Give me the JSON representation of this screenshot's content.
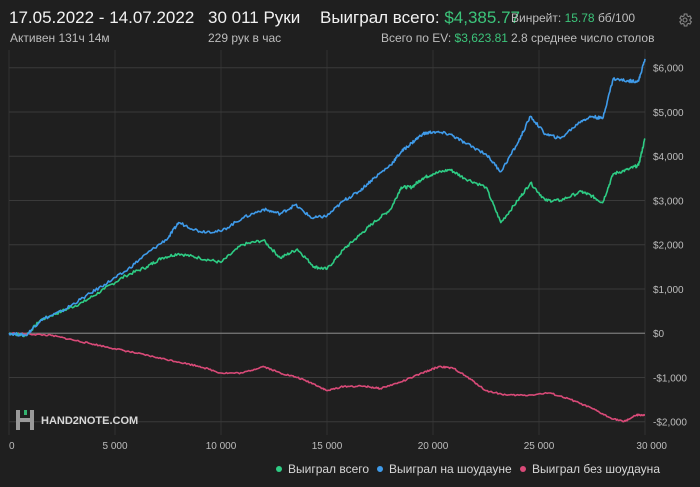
{
  "header": {
    "date_range": "17.05.2022 - 14.07.2022",
    "active": "Активен 131ч 14м",
    "hands": "30 011 Руки",
    "hands_per_hour": "229 рук в час",
    "won_label": "Выиграл всего:",
    "won_value": "$4,385.77",
    "ev_label": "Всего по EV:",
    "ev_value": "$3,623.81",
    "winrate_label": "Винрейт:",
    "winrate_value": "15.78",
    "winrate_unit": "бб/100",
    "tables": "2.8 среднее число столов"
  },
  "icons": {
    "settings": "gear-icon"
  },
  "watermark": {
    "text": "HAND2NOTE.COM"
  },
  "colors": {
    "won": "#2ecc84",
    "showdown": "#3f9bea",
    "non_showdown": "#d94a78",
    "positive": "#3cc47a"
  },
  "chart_data": {
    "type": "line",
    "x_range": [
      0,
      30000
    ],
    "ylim": [
      -2300,
      6400
    ],
    "x_ticks": [
      {
        "value": 0,
        "label": "0"
      },
      {
        "value": 5000,
        "label": "5 000"
      },
      {
        "value": 10000,
        "label": "10 000"
      },
      {
        "value": 15000,
        "label": "15 000"
      },
      {
        "value": 20000,
        "label": "20 000"
      },
      {
        "value": 25000,
        "label": "25 000"
      },
      {
        "value": 30000,
        "label": "30 000"
      }
    ],
    "y_ticks": [
      {
        "value": 6000,
        "label": "$6,000"
      },
      {
        "value": 5000,
        "label": "$5,000"
      },
      {
        "value": 4000,
        "label": "$4,000"
      },
      {
        "value": 3000,
        "label": "$3,000"
      },
      {
        "value": 2000,
        "label": "$2,000"
      },
      {
        "value": 1000,
        "label": "$1,000"
      },
      {
        "value": 0,
        "label": "$0"
      },
      {
        "value": -1000,
        "label": "-$1,000"
      },
      {
        "value": -2000,
        "label": "-$2,000"
      }
    ],
    "legend_position": "bottom-right",
    "series": [
      {
        "name": "Выиграл всего",
        "color": "#2ecc84",
        "points": [
          [
            0,
            0
          ],
          [
            800,
            -50
          ],
          [
            1500,
            300
          ],
          [
            2500,
            500
          ],
          [
            3500,
            700
          ],
          [
            4500,
            1000
          ],
          [
            5500,
            1300
          ],
          [
            6500,
            1500
          ],
          [
            7200,
            1700
          ],
          [
            8000,
            1800
          ],
          [
            9000,
            1700
          ],
          [
            10000,
            1600
          ],
          [
            11000,
            2000
          ],
          [
            12000,
            2100
          ],
          [
            12800,
            1700
          ],
          [
            13600,
            1900
          ],
          [
            14400,
            1500
          ],
          [
            15000,
            1450
          ],
          [
            15800,
            1900
          ],
          [
            16500,
            2200
          ],
          [
            17200,
            2500
          ],
          [
            18000,
            2800
          ],
          [
            18500,
            3300
          ],
          [
            19000,
            3300
          ],
          [
            19500,
            3500
          ],
          [
            20000,
            3600
          ],
          [
            20800,
            3700
          ],
          [
            21500,
            3500
          ],
          [
            22500,
            3300
          ],
          [
            23200,
            2500
          ],
          [
            24000,
            3000
          ],
          [
            24600,
            3400
          ],
          [
            25300,
            3000
          ],
          [
            26000,
            3000
          ],
          [
            27000,
            3200
          ],
          [
            27500,
            3100
          ],
          [
            28000,
            2950
          ],
          [
            28500,
            3600
          ],
          [
            29200,
            3700
          ],
          [
            29700,
            3800
          ],
          [
            30000,
            4400
          ]
        ]
      },
      {
        "name": "Выиграл на шоудауне",
        "color": "#3f9bea",
        "points": [
          [
            0,
            0
          ],
          [
            800,
            -50
          ],
          [
            1500,
            300
          ],
          [
            2500,
            500
          ],
          [
            3500,
            800
          ],
          [
            4500,
            1100
          ],
          [
            5500,
            1400
          ],
          [
            6500,
            1800
          ],
          [
            7500,
            2150
          ],
          [
            8000,
            2500
          ],
          [
            9000,
            2300
          ],
          [
            10000,
            2300
          ],
          [
            11000,
            2600
          ],
          [
            12000,
            2800
          ],
          [
            12800,
            2700
          ],
          [
            13500,
            2900
          ],
          [
            14300,
            2600
          ],
          [
            15000,
            2650
          ],
          [
            15800,
            3000
          ],
          [
            16500,
            3200
          ],
          [
            17200,
            3500
          ],
          [
            18000,
            3800
          ],
          [
            18500,
            4100
          ],
          [
            19000,
            4300
          ],
          [
            19500,
            4500
          ],
          [
            20000,
            4550
          ],
          [
            20800,
            4500
          ],
          [
            21500,
            4300
          ],
          [
            22500,
            4050
          ],
          [
            23200,
            3650
          ],
          [
            24000,
            4300
          ],
          [
            24600,
            4900
          ],
          [
            25300,
            4500
          ],
          [
            26000,
            4400
          ],
          [
            27000,
            4800
          ],
          [
            27500,
            4900
          ],
          [
            28000,
            4850
          ],
          [
            28500,
            5750
          ],
          [
            29200,
            5700
          ],
          [
            29700,
            5700
          ],
          [
            30000,
            6200
          ]
        ]
      },
      {
        "name": "Выиграл без шоудауна",
        "color": "#d94a78",
        "points": [
          [
            0,
            0
          ],
          [
            1000,
            -20
          ],
          [
            2000,
            -50
          ],
          [
            3000,
            -150
          ],
          [
            4000,
            -250
          ],
          [
            5000,
            -350
          ],
          [
            6000,
            -450
          ],
          [
            7000,
            -550
          ],
          [
            8000,
            -650
          ],
          [
            9000,
            -750
          ],
          [
            10000,
            -900
          ],
          [
            11000,
            -900
          ],
          [
            12000,
            -750
          ],
          [
            12800,
            -900
          ],
          [
            13600,
            -1000
          ],
          [
            14400,
            -1150
          ],
          [
            15000,
            -1300
          ],
          [
            15800,
            -1200
          ],
          [
            16800,
            -1200
          ],
          [
            17500,
            -1250
          ],
          [
            18500,
            -1100
          ],
          [
            19500,
            -900
          ],
          [
            20300,
            -750
          ],
          [
            21000,
            -800
          ],
          [
            21800,
            -1050
          ],
          [
            22500,
            -1300
          ],
          [
            23500,
            -1400
          ],
          [
            24500,
            -1400
          ],
          [
            25500,
            -1350
          ],
          [
            26500,
            -1500
          ],
          [
            27500,
            -1700
          ],
          [
            28300,
            -1900
          ],
          [
            29000,
            -2000
          ],
          [
            29600,
            -1850
          ],
          [
            30000,
            -1850
          ]
        ]
      }
    ]
  }
}
